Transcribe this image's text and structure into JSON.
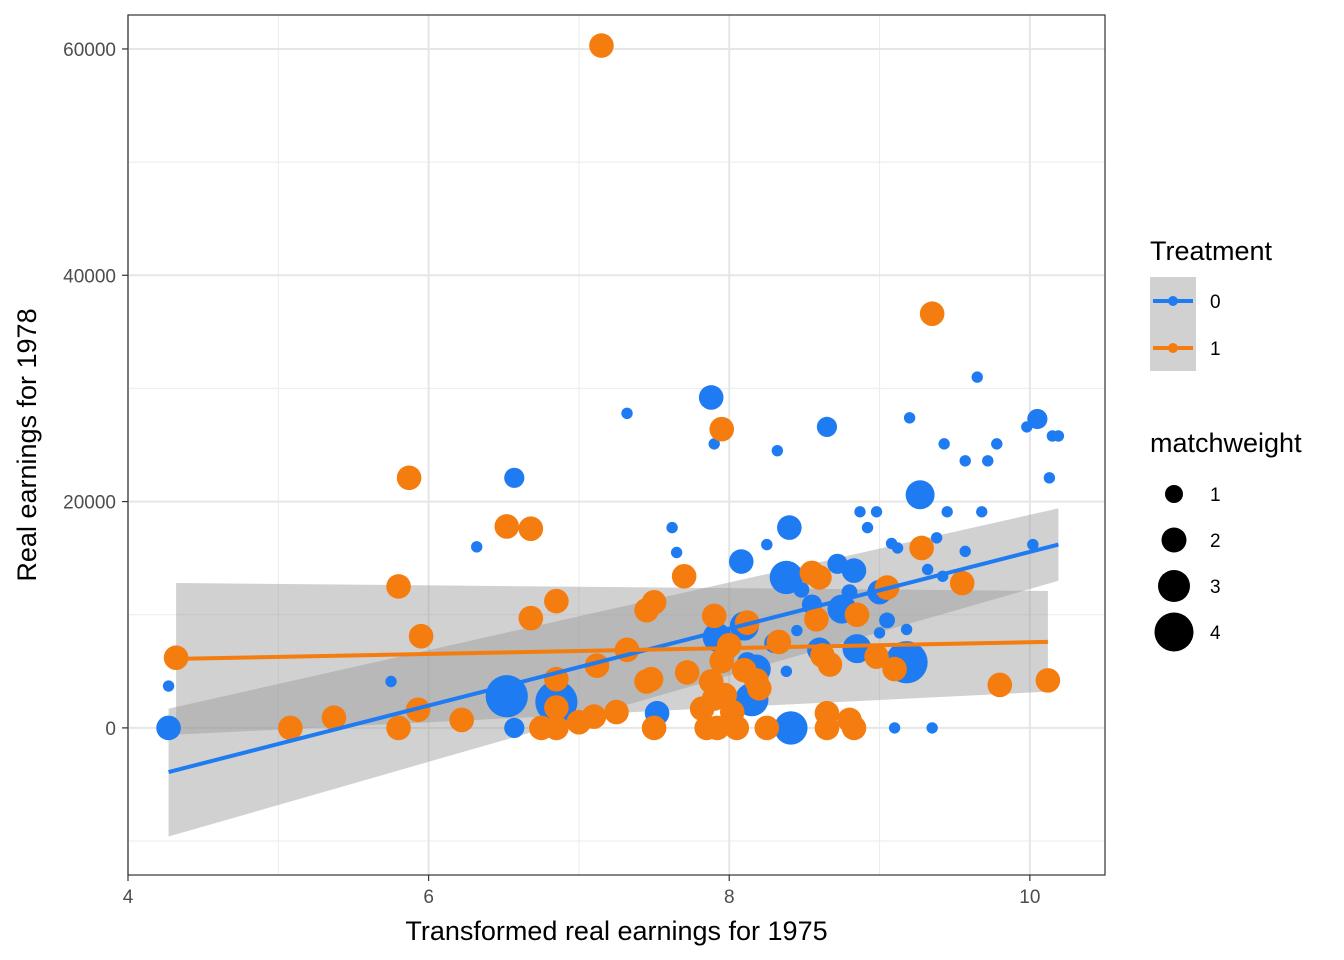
{
  "chart_data": {
    "type": "scatter",
    "xlabel": "Transformed real earnings for 1975",
    "ylabel": "Real earnings for 1978",
    "xlim": [
      4.0,
      10.5
    ],
    "ylim": [
      -13000,
      63000
    ],
    "x_ticks": [
      4,
      6,
      8,
      10
    ],
    "y_ticks": [
      0,
      20000,
      40000,
      60000
    ],
    "x_tick_labels": [
      "4",
      "6",
      "8",
      "10"
    ],
    "y_tick_labels": [
      "0",
      "20000",
      "40000",
      "60000"
    ],
    "grid": true,
    "theme": "bw",
    "legend_position": "right",
    "legends": {
      "color": {
        "title": "Treatment",
        "entries": [
          "0",
          "1"
        ]
      },
      "size": {
        "title": "matchweight",
        "entries": [
          "1",
          "2",
          "3",
          "4"
        ]
      }
    },
    "colors": {
      "0": "#1f7bf2",
      "1": "#f57c0f",
      "band": "#999999"
    },
    "series": [
      {
        "name": "0",
        "fit": {
          "x": [
            4.27,
            10.19
          ],
          "y": [
            -3900,
            16200
          ]
        },
        "band": {
          "x": [
            4.27,
            10.19
          ],
          "upper": [
            1700,
            19400
          ],
          "lower": [
            -9600,
            13000
          ]
        },
        "points": [
          [
            4.27,
            3700,
            0.5
          ],
          [
            4.27,
            0,
            2
          ],
          [
            5.75,
            4100,
            0.5
          ],
          [
            6.32,
            16000,
            0.5
          ],
          [
            6.57,
            22100,
            1.5
          ],
          [
            6.52,
            2800,
            4
          ],
          [
            6.57,
            0,
            1.5
          ],
          [
            6.85,
            2300,
            4
          ],
          [
            7.32,
            27800,
            0.5
          ],
          [
            7.52,
            1300,
            2
          ],
          [
            7.62,
            17700,
            0.5
          ],
          [
            7.65,
            15500,
            0.5
          ],
          [
            7.88,
            29200,
            2
          ],
          [
            7.9,
            25100,
            0.5
          ],
          [
            7.92,
            8000,
            2.5
          ],
          [
            8.0,
            6800,
            1
          ],
          [
            8.08,
            14700,
            2
          ],
          [
            8.1,
            9000,
            2.5
          ],
          [
            8.12,
            5800,
            1.5
          ],
          [
            8.15,
            2500,
            3
          ],
          [
            8.18,
            5200,
            2.5
          ],
          [
            8.25,
            16200,
            0.5
          ],
          [
            8.3,
            7500,
            1.5
          ],
          [
            8.32,
            24500,
            0.5
          ],
          [
            8.38,
            5000,
            0.5
          ],
          [
            8.38,
            13300,
            3
          ],
          [
            8.4,
            17700,
            2
          ],
          [
            8.41,
            0,
            3
          ],
          [
            8.45,
            8600,
            0.5
          ],
          [
            8.48,
            12200,
            1
          ],
          [
            8.55,
            10900,
            1.5
          ],
          [
            8.6,
            6900,
            2
          ],
          [
            8.65,
            26600,
            1.5
          ],
          [
            8.72,
            14500,
            1.5
          ],
          [
            8.75,
            10500,
            2.5
          ],
          [
            8.8,
            12000,
            1
          ],
          [
            8.83,
            13900,
            2
          ],
          [
            8.85,
            7000,
            2.5
          ],
          [
            8.87,
            19100,
            0.5
          ],
          [
            8.92,
            17700,
            0.5
          ],
          [
            8.98,
            19100,
            0.5
          ],
          [
            9.0,
            8400,
            0.5
          ],
          [
            9.0,
            12000,
            2
          ],
          [
            9.05,
            9500,
            1
          ],
          [
            9.08,
            16300,
            0.5
          ],
          [
            9.1,
            0,
            0.5
          ],
          [
            9.12,
            15900,
            0.5
          ],
          [
            9.18,
            8700,
            0.5
          ],
          [
            9.18,
            5800,
            4
          ],
          [
            9.2,
            27400,
            0.5
          ],
          [
            9.27,
            20600,
            2.5
          ],
          [
            9.32,
            14000,
            0.5
          ],
          [
            9.35,
            0,
            0.5
          ],
          [
            9.38,
            16800,
            0.5
          ],
          [
            9.42,
            13400,
            0.5
          ],
          [
            9.43,
            25100,
            0.5
          ],
          [
            9.45,
            19100,
            0.5
          ],
          [
            9.57,
            23600,
            0.5
          ],
          [
            9.57,
            15600,
            0.5
          ],
          [
            9.65,
            31000,
            0.5
          ],
          [
            9.68,
            19100,
            0.5
          ],
          [
            9.72,
            23600,
            0.5
          ],
          [
            9.78,
            25100,
            0.5
          ],
          [
            9.98,
            26600,
            0.5
          ],
          [
            10.02,
            16200,
            0.5
          ],
          [
            10.05,
            27300,
            1.5
          ],
          [
            10.13,
            22100,
            0.5
          ],
          [
            10.15,
            25800,
            0.5
          ],
          [
            10.19,
            25800,
            0.5
          ]
        ]
      },
      {
        "name": "1",
        "fit": {
          "x": [
            4.32,
            10.12
          ],
          "y": [
            6100,
            7600
          ]
        },
        "band": {
          "x": [
            4.32,
            10.12
          ],
          "upper": [
            12800,
            12100
          ],
          "lower": [
            -600,
            3200
          ]
        },
        "points": [
          [
            4.32,
            6200,
            2
          ],
          [
            5.08,
            0,
            2
          ],
          [
            5.37,
            900,
            2
          ],
          [
            5.8,
            12500,
            2
          ],
          [
            5.8,
            0,
            2
          ],
          [
            5.87,
            22100,
            2
          ],
          [
            5.93,
            1600,
            2
          ],
          [
            5.95,
            8100,
            2
          ],
          [
            6.22,
            700,
            2
          ],
          [
            6.52,
            17800,
            2
          ],
          [
            6.68,
            17600,
            2
          ],
          [
            6.68,
            9700,
            2
          ],
          [
            6.75,
            0,
            2
          ],
          [
            6.85,
            11200,
            2
          ],
          [
            6.85,
            4300,
            2
          ],
          [
            6.85,
            1800,
            2
          ],
          [
            6.85,
            0,
            2
          ],
          [
            7.0,
            500,
            2
          ],
          [
            7.1,
            1000,
            2
          ],
          [
            7.12,
            5500,
            2
          ],
          [
            7.15,
            60300,
            2
          ],
          [
            7.25,
            1400,
            2
          ],
          [
            7.32,
            6900,
            2
          ],
          [
            7.45,
            4100,
            2
          ],
          [
            7.45,
            10400,
            2
          ],
          [
            7.48,
            4300,
            2
          ],
          [
            7.5,
            11100,
            2
          ],
          [
            7.5,
            0,
            2
          ],
          [
            7.7,
            13400,
            2
          ],
          [
            7.72,
            4900,
            2
          ],
          [
            7.82,
            1700,
            2
          ],
          [
            7.85,
            0,
            2
          ],
          [
            7.88,
            4100,
            2
          ],
          [
            7.9,
            9900,
            2
          ],
          [
            7.9,
            2600,
            2
          ],
          [
            7.92,
            0,
            2
          ],
          [
            7.95,
            26400,
            2
          ],
          [
            7.95,
            5900,
            2
          ],
          [
            7.97,
            2900,
            2
          ],
          [
            8.0,
            7300,
            2
          ],
          [
            8.02,
            1400,
            2
          ],
          [
            8.05,
            0,
            2
          ],
          [
            8.1,
            5100,
            2
          ],
          [
            8.12,
            9300,
            2
          ],
          [
            8.18,
            4200,
            2
          ],
          [
            8.2,
            3500,
            2
          ],
          [
            8.25,
            0,
            2
          ],
          [
            8.33,
            7600,
            2
          ],
          [
            8.55,
            13700,
            2
          ],
          [
            8.58,
            9600,
            2
          ],
          [
            8.6,
            13300,
            2
          ],
          [
            8.62,
            6400,
            2
          ],
          [
            8.65,
            1300,
            2
          ],
          [
            8.65,
            0,
            2
          ],
          [
            8.67,
            5600,
            2
          ],
          [
            8.8,
            700,
            2
          ],
          [
            8.83,
            0,
            2
          ],
          [
            8.85,
            10000,
            2
          ],
          [
            8.98,
            6300,
            2
          ],
          [
            9.05,
            12400,
            2
          ],
          [
            9.1,
            5200,
            2
          ],
          [
            9.28,
            15900,
            2
          ],
          [
            9.35,
            36600,
            2
          ],
          [
            9.55,
            12800,
            2
          ],
          [
            9.8,
            3800,
            2
          ],
          [
            10.12,
            4200,
            2
          ]
        ]
      }
    ]
  }
}
